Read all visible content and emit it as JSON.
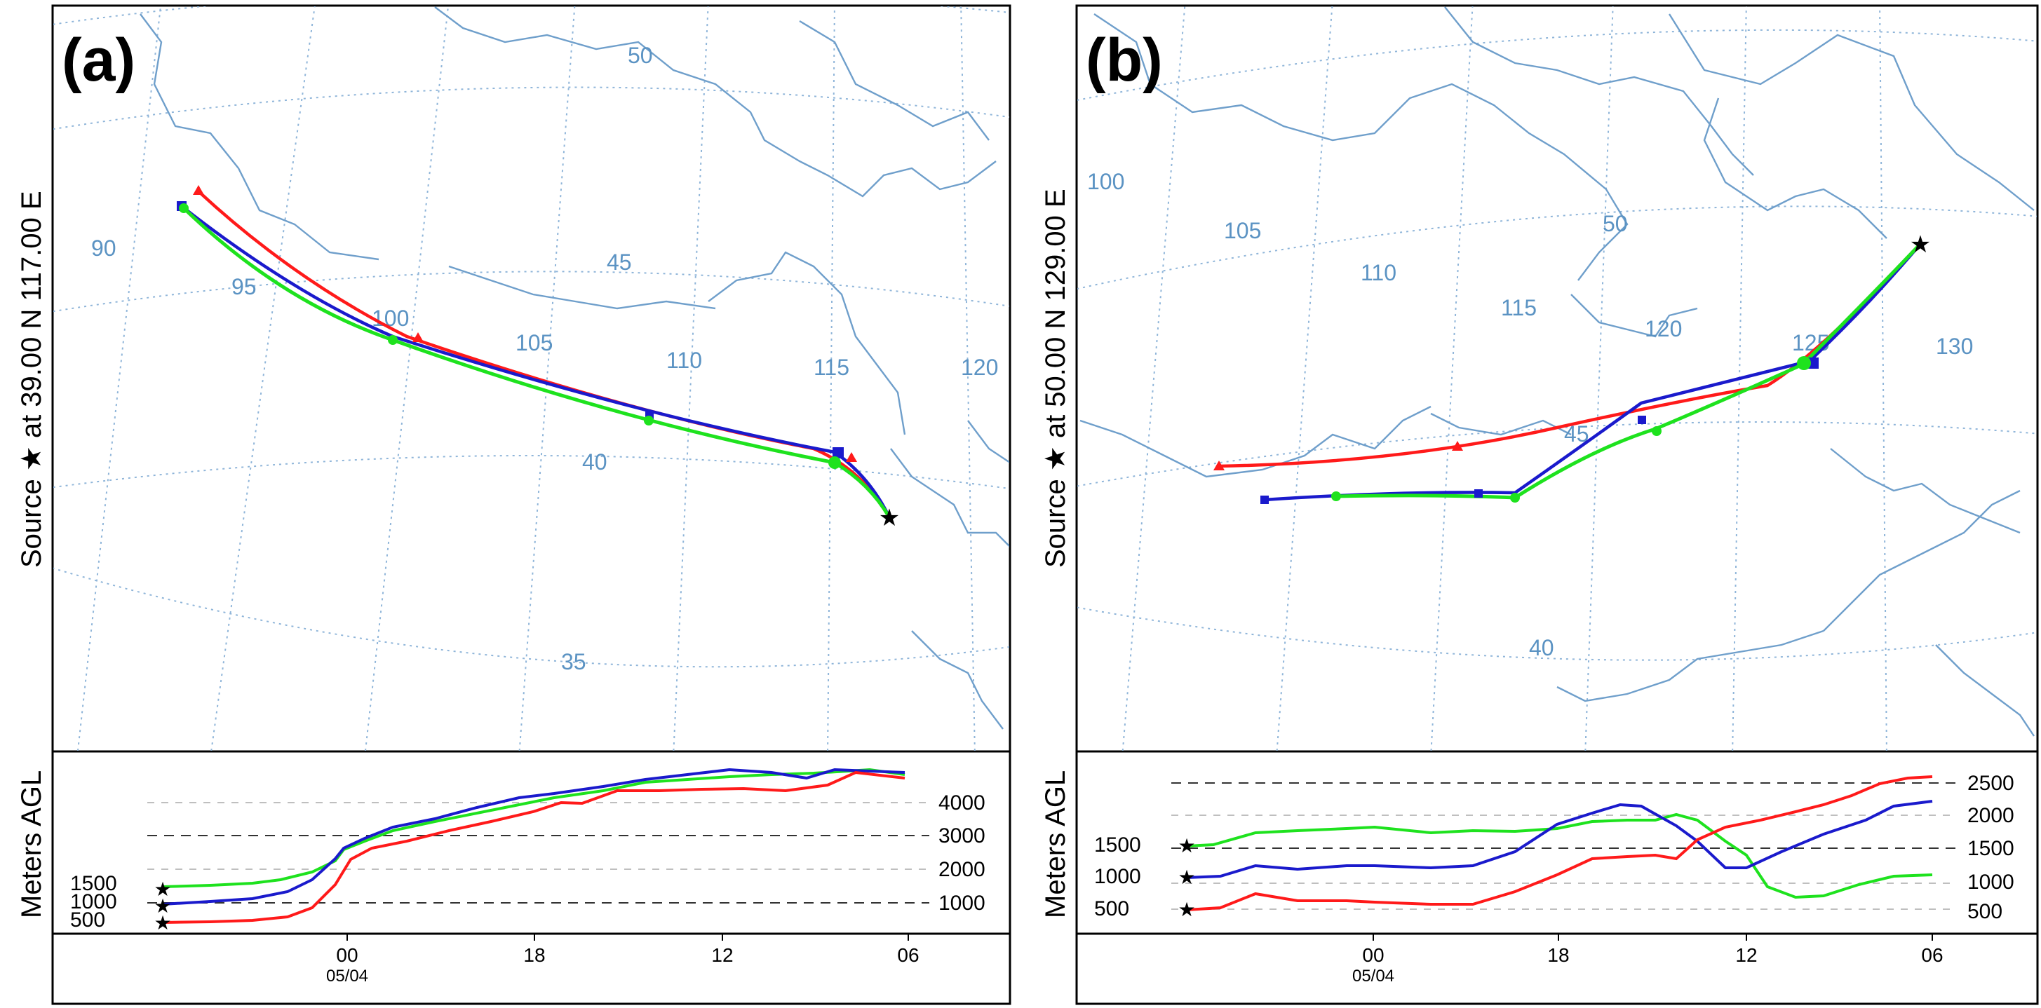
{
  "panels": [
    {
      "id": "a",
      "letter": "(a)",
      "source_label": "Source ★  at   39.00 N  117.00 E",
      "lon_labels": [
        "90",
        "95",
        "100",
        "105",
        "110",
        "115",
        "120"
      ],
      "lat_labels": [
        "50",
        "45",
        "40",
        "35"
      ],
      "height_axis_label": "Meters AGL",
      "start_heights": [
        "1500",
        "1000",
        "500"
      ],
      "right_ticks": [
        "4000",
        "3000",
        "2000",
        "1000"
      ],
      "time_ticks": [
        "00",
        "18",
        "12",
        "06"
      ],
      "date_label": "05/04",
      "trajectories": [
        {
          "color": "#ff1a1a",
          "marker": "triangle",
          "start_height_m": 500
        },
        {
          "color": "#1a1acc",
          "marker": "square",
          "start_height_m": 1000
        },
        {
          "color": "#1ee21e",
          "marker": "circle",
          "start_height_m": 1500
        }
      ]
    },
    {
      "id": "b",
      "letter": "(b)",
      "source_label": "Source ★  at   50.00 N  129.00 E",
      "lon_labels": [
        "100",
        "105",
        "110",
        "115",
        "120",
        "125",
        "130"
      ],
      "lat_labels": [
        "50",
        "45",
        "40"
      ],
      "height_axis_label": "Meters AGL",
      "start_heights": [
        "1500",
        "1000",
        "500"
      ],
      "right_ticks": [
        "2500",
        "2000",
        "1500",
        "1000",
        "500"
      ],
      "time_ticks": [
        "00",
        "18",
        "12",
        "06"
      ],
      "date_label": "05/04",
      "trajectories": [
        {
          "color": "#ff1a1a",
          "marker": "triangle",
          "start_height_m": 500
        },
        {
          "color": "#1a1acc",
          "marker": "square",
          "start_height_m": 1000
        },
        {
          "color": "#1ee21e",
          "marker": "circle",
          "start_height_m": 1500
        }
      ]
    }
  ]
}
